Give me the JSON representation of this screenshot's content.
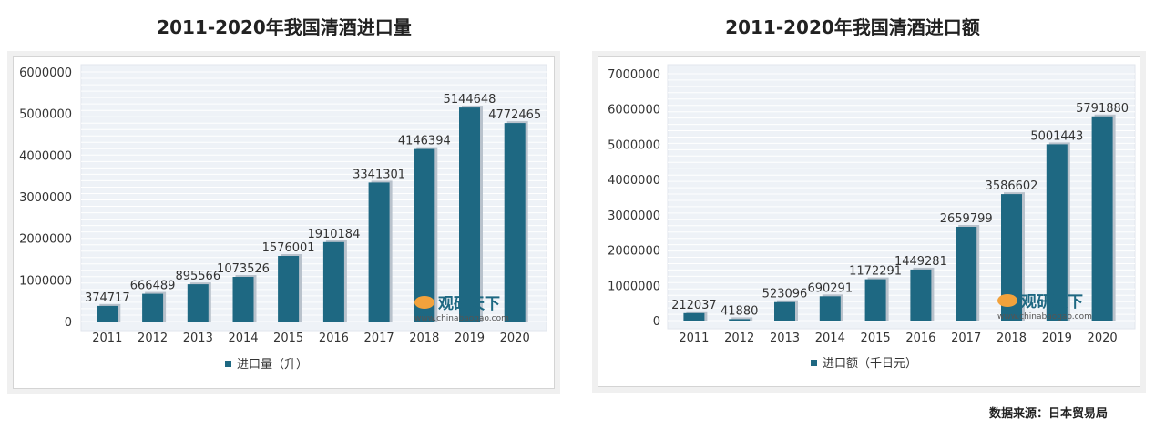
{
  "chart_data": [
    {
      "type": "bar",
      "title": "2011-2020年我国清酒进口量",
      "categories": [
        "2011",
        "2012",
        "2013",
        "2014",
        "2015",
        "2016",
        "2017",
        "2018",
        "2019",
        "2020"
      ],
      "series": [
        {
          "name": "进口量（升）",
          "values": [
            374717,
            666489,
            895566,
            1073526,
            1576001,
            1910184,
            3341301,
            4146394,
            5144648,
            4772465
          ]
        }
      ],
      "ylim": [
        0,
        6000000
      ],
      "yticks": [
        "0",
        "1000000",
        "2000000",
        "3000000",
        "4000000",
        "5000000",
        "6000000"
      ],
      "grid": true,
      "legend": "bottom",
      "color": "#1e6882"
    },
    {
      "type": "bar",
      "title": "2011-2020年我国清酒进口额",
      "categories": [
        "2011",
        "2012",
        "2013",
        "2014",
        "2015",
        "2016",
        "2017",
        "2018",
        "2019",
        "2020"
      ],
      "series": [
        {
          "name": "进口额（千日元）",
          "values": [
            212037,
            41880,
            523096,
            690291,
            1172291,
            1449281,
            2659799,
            3586602,
            5001443,
            5791880
          ]
        }
      ],
      "ylim": [
        0,
        7000000
      ],
      "yticks": [
        "0",
        "1000000",
        "2000000",
        "3000000",
        "4000000",
        "5000000",
        "6000000",
        "7000000"
      ],
      "grid": true,
      "legend": "bottom",
      "color": "#1e6882"
    }
  ],
  "watermark": {
    "name": "观研天下",
    "url": "www.chinabaogao.com"
  },
  "source": "数据来源：日本贸易局"
}
